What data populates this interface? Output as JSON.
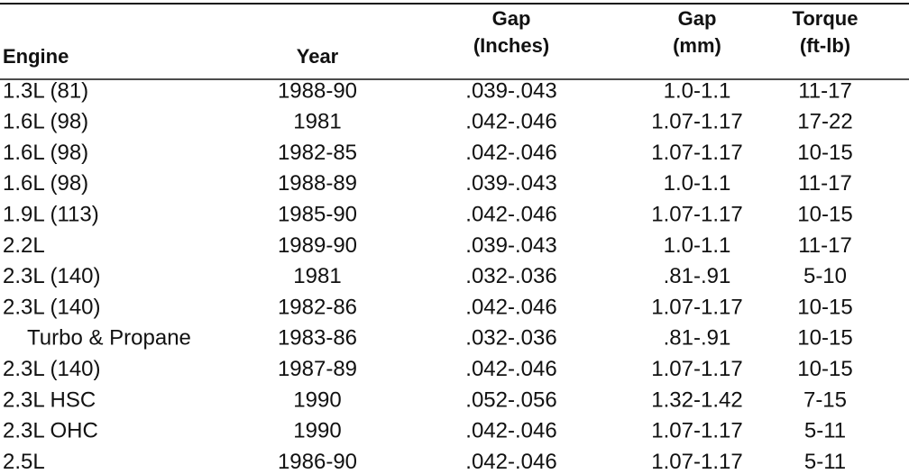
{
  "table": {
    "header": [
      [
        "Engine"
      ],
      [
        "Year"
      ],
      [
        "Gap",
        "(Inches)"
      ],
      [
        "Gap",
        "(mm)"
      ],
      [
        "Torque",
        "(ft-lb)"
      ]
    ],
    "rows": [
      [
        "1.3L (81)",
        "1988-90",
        ".039-.043",
        "1.0-1.1",
        "11-17"
      ],
      [
        "1.6L (98)",
        "1981",
        ".042-.046",
        "1.07-1.17",
        "17-22"
      ],
      [
        "1.6L (98)",
        "1982-85",
        ".042-.046",
        "1.07-1.17",
        "10-15"
      ],
      [
        "1.6L (98)",
        "1988-89",
        ".039-.043",
        "1.0-1.1",
        "11-17"
      ],
      [
        "1.9L (113)",
        "1985-90",
        ".042-.046",
        "1.07-1.17",
        "10-15"
      ],
      [
        "2.2L",
        "1989-90",
        ".039-.043",
        "1.0-1.1",
        "11-17"
      ],
      [
        "2.3L (140)",
        "1981",
        ".032-.036",
        ".81-.91",
        "5-10"
      ],
      [
        "2.3L (140)",
        "1982-86",
        ".042-.046",
        "1.07-1.17",
        "10-15"
      ],
      [
        "Turbo & Propane",
        "1983-86",
        ".032-.036",
        ".81-.91",
        "10-15"
      ],
      [
        "2.3L (140)",
        "1987-89",
        ".042-.046",
        "1.07-1.17",
        "10-15"
      ],
      [
        "2.3L HSC",
        "1990",
        ".052-.056",
        "1.32-1.42",
        "7-15"
      ],
      [
        "2.3L OHC",
        "1990",
        ".042-.046",
        "1.07-1.17",
        "5-11"
      ],
      [
        "2.5L",
        "1986-90",
        ".042-.046",
        "1.07-1.17",
        "5-11"
      ]
    ]
  }
}
